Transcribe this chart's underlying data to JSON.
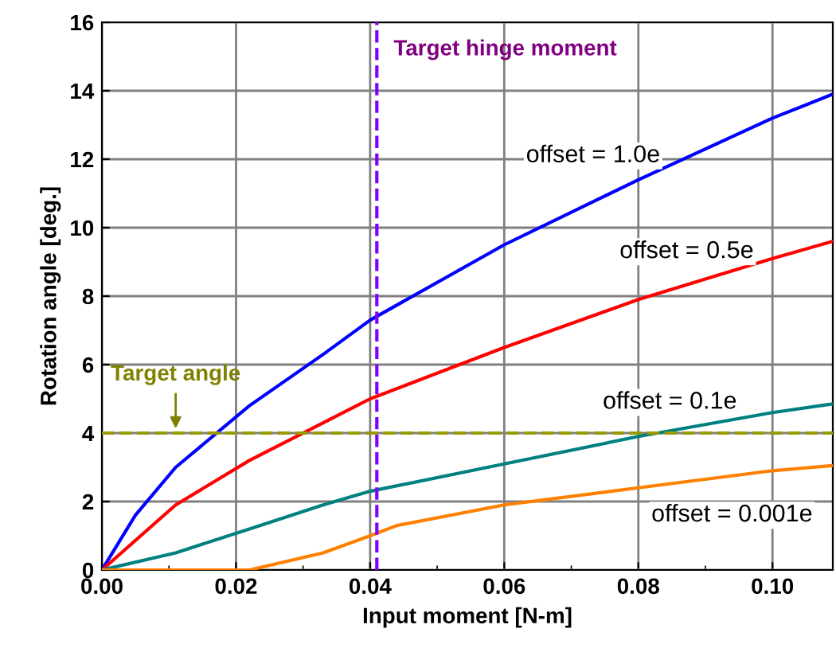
{
  "chart_data": {
    "type": "line",
    "xlabel": "Input moment [N-m]",
    "ylabel": "Rotation angle [deg.]",
    "xlim": [
      0,
      0.109
    ],
    "ylim": [
      0,
      16
    ],
    "xticks": [
      {
        "value": 0,
        "label": "0.00"
      },
      {
        "value": 0.02,
        "label": "0.02"
      },
      {
        "value": 0.04,
        "label": "0.04"
      },
      {
        "value": 0.06,
        "label": "0.06"
      },
      {
        "value": 0.08,
        "label": "0.08"
      },
      {
        "value": 0.1,
        "label": "0.10"
      }
    ],
    "yticks": [
      0,
      2,
      4,
      6,
      8,
      10,
      12,
      14,
      16
    ],
    "grid": true,
    "marker": "none",
    "line_style": "solid",
    "series": [
      {
        "name": "offset = 1.0e",
        "color": "#0000ff",
        "x": [
          0,
          0.005,
          0.011,
          0.022,
          0.033,
          0.04,
          0.06,
          0.08,
          0.1,
          0.109
        ],
        "values": [
          0,
          1.6,
          3.0,
          4.8,
          6.3,
          7.3,
          9.5,
          11.4,
          13.2,
          13.9
        ]
      },
      {
        "name": "offset = 0.5e",
        "color": "#ff0000",
        "x": [
          0,
          0.011,
          0.022,
          0.033,
          0.04,
          0.06,
          0.08,
          0.1,
          0.109
        ],
        "values": [
          0,
          1.9,
          3.2,
          4.3,
          5.0,
          6.5,
          7.9,
          9.1,
          9.6
        ]
      },
      {
        "name": "offset = 0.1e",
        "color": "#008080",
        "x": [
          0,
          0.011,
          0.022,
          0.033,
          0.04,
          0.06,
          0.08,
          0.1,
          0.109
        ],
        "values": [
          0,
          0.5,
          1.2,
          1.9,
          2.3,
          3.1,
          3.9,
          4.6,
          4.85
        ]
      },
      {
        "name": "offset = 0.001e",
        "color": "#ff8000",
        "x": [
          0,
          0.022,
          0.033,
          0.04,
          0.044,
          0.06,
          0.08,
          0.1,
          0.109
        ],
        "values": [
          0,
          0,
          0.5,
          1.0,
          1.3,
          1.9,
          2.4,
          2.9,
          3.05
        ]
      }
    ],
    "ref_lines": [
      {
        "axis": "x",
        "value": 0.041,
        "label": "Target hinge moment",
        "color": "#8000ff",
        "line_style": "dashed"
      },
      {
        "axis": "y",
        "value": 4,
        "label": "Target angle",
        "color": "#999900",
        "line_style": "dashed"
      }
    ]
  }
}
